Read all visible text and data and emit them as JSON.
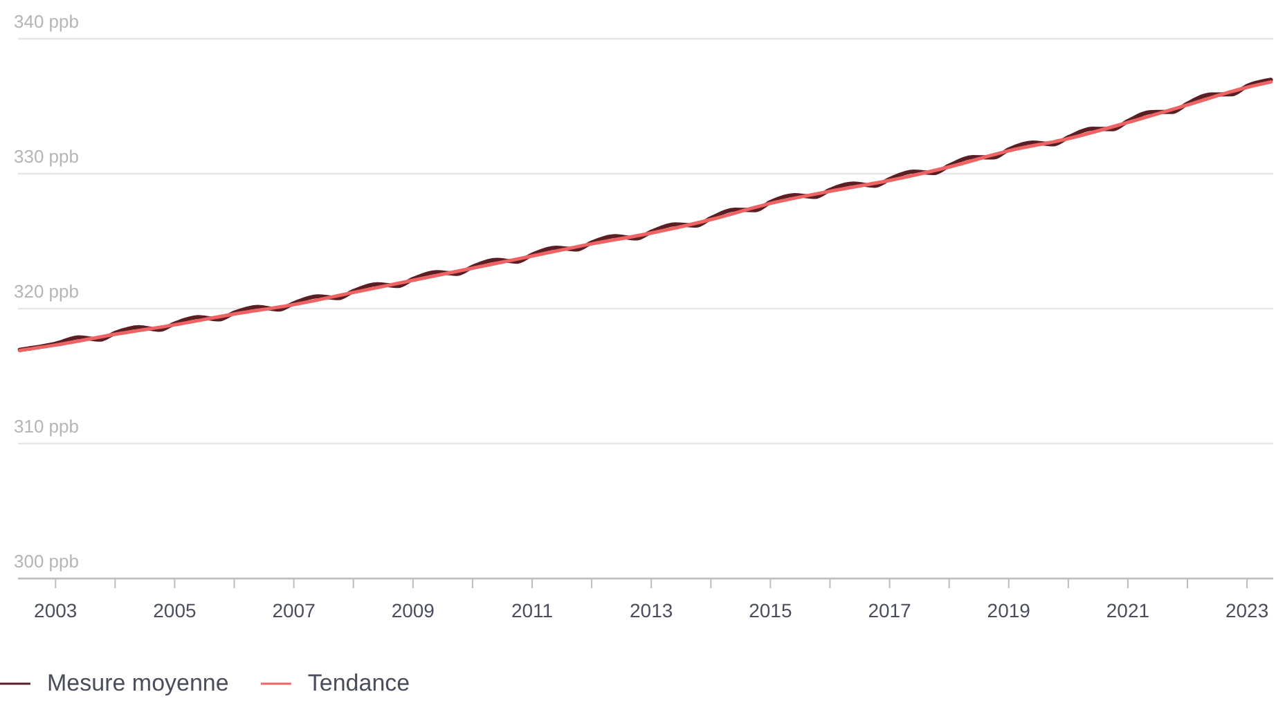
{
  "chart_data": {
    "type": "line",
    "x": [
      2002.4,
      2003,
      2003.4,
      2003.75,
      2004,
      2004.4,
      2004.75,
      2005,
      2005.4,
      2005.75,
      2006,
      2006.4,
      2006.75,
      2007,
      2007.4,
      2007.75,
      2008,
      2008.4,
      2008.75,
      2009,
      2009.4,
      2009.75,
      2010,
      2010.4,
      2010.75,
      2011,
      2011.4,
      2011.75,
      2012,
      2012.4,
      2012.75,
      2013,
      2013.4,
      2013.75,
      2014,
      2014.4,
      2014.75,
      2015,
      2015.4,
      2015.75,
      2016,
      2016.4,
      2016.75,
      2017,
      2017.4,
      2017.75,
      2018,
      2018.4,
      2018.75,
      2019,
      2019.4,
      2019.75,
      2020,
      2020.4,
      2020.75,
      2021,
      2021.4,
      2021.75,
      2022,
      2022.4,
      2022.75,
      2023,
      2023.4
    ],
    "series": [
      {
        "name": "Mesure moyenne",
        "color": "#5a1f24",
        "values": [
          316.95,
          317.4,
          317.87,
          317.7,
          318.2,
          318.63,
          318.43,
          318.9,
          319.37,
          319.2,
          319.7,
          320.13,
          319.93,
          320.4,
          320.91,
          320.78,
          321.3,
          321.81,
          321.68,
          322.2,
          322.71,
          322.58,
          323.1,
          323.61,
          323.48,
          324,
          324.51,
          324.38,
          324.9,
          325.37,
          325.2,
          325.7,
          326.25,
          326.15,
          326.7,
          327.33,
          327.3,
          327.9,
          328.41,
          328.28,
          328.8,
          329.27,
          329.1,
          329.6,
          330.15,
          330.05,
          330.6,
          331.23,
          331.2,
          331.8,
          332.31,
          332.18,
          332.7,
          333.33,
          333.3,
          333.9,
          334.57,
          334.58,
          335.2,
          335.87,
          335.88,
          336.5,
          336.96
        ]
      },
      {
        "name": "Tendance",
        "color": "#ee6363",
        "x": [
          2002.4,
          2003,
          2004,
          2005,
          2006,
          2007,
          2008,
          2009,
          2010,
          2011,
          2012,
          2013,
          2014,
          2015,
          2016,
          2017,
          2018,
          2019,
          2020,
          2021,
          2022,
          2023,
          2023.4
        ],
        "values": [
          316.9,
          317.3,
          318.1,
          318.8,
          319.6,
          320.3,
          321.2,
          322.1,
          323,
          323.9,
          324.8,
          325.6,
          326.6,
          327.8,
          328.7,
          329.5,
          330.5,
          331.7,
          332.6,
          333.8,
          335.1,
          336.4,
          336.8
        ]
      }
    ],
    "xlim": [
      2002.37,
      2023.44
    ],
    "xticks": [
      2003,
      {
        "value": 2004,
        "label": null
      },
      2005,
      {
        "value": 2006,
        "label": null
      },
      2007,
      {
        "value": 2008,
        "label": null
      },
      2009,
      {
        "value": 2010,
        "label": null
      },
      2011,
      {
        "value": 2012,
        "label": null
      },
      2013,
      {
        "value": 2014,
        "label": null
      },
      2015,
      {
        "value": 2016,
        "label": null
      },
      2017,
      {
        "value": 2018,
        "label": null
      },
      2019,
      {
        "value": 2020,
        "label": null
      },
      2021,
      {
        "value": 2022,
        "label": null
      },
      2023
    ],
    "ylim": [
      300,
      340
    ],
    "yticks": [
      {
        "value": 300,
        "label": "300 ppb"
      },
      {
        "value": 310,
        "label": "310 ppb"
      },
      {
        "value": 320,
        "label": "320 ppb"
      },
      {
        "value": 330,
        "label": "330 ppb"
      },
      {
        "value": 340,
        "label": "340 ppb"
      }
    ],
    "grid": "y",
    "legend": "bottom left",
    "marker": "none",
    "line_style": "solid"
  }
}
